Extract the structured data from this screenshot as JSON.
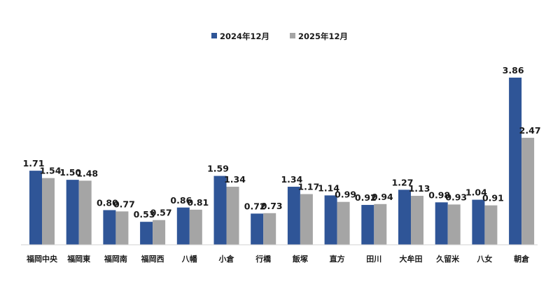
{
  "chart_data": {
    "type": "bar",
    "title": "",
    "xlabel": "",
    "ylabel": "",
    "ylim": [
      0,
      3.86
    ],
    "grid": false,
    "legend_position": "top-center",
    "categories": [
      "福岡中央",
      "福岡東",
      "福岡南",
      "福岡西",
      "八幡",
      "小倉",
      "行橋",
      "飯塚",
      "直方",
      "田川",
      "大牟田",
      "久留米",
      "八女",
      "朝倉"
    ],
    "series": [
      {
        "name": "2024年12月",
        "color": "#2F5597",
        "values": [
          1.71,
          1.5,
          0.8,
          0.53,
          0.86,
          1.59,
          0.72,
          1.34,
          1.14,
          0.92,
          1.27,
          0.98,
          1.04,
          3.86
        ]
      },
      {
        "name": "2025年12月",
        "color": "#A5A5A5",
        "values": [
          1.54,
          1.48,
          0.77,
          0.57,
          0.81,
          1.34,
          0.73,
          1.17,
          0.99,
          0.94,
          1.13,
          0.93,
          0.91,
          2.47
        ]
      }
    ]
  }
}
